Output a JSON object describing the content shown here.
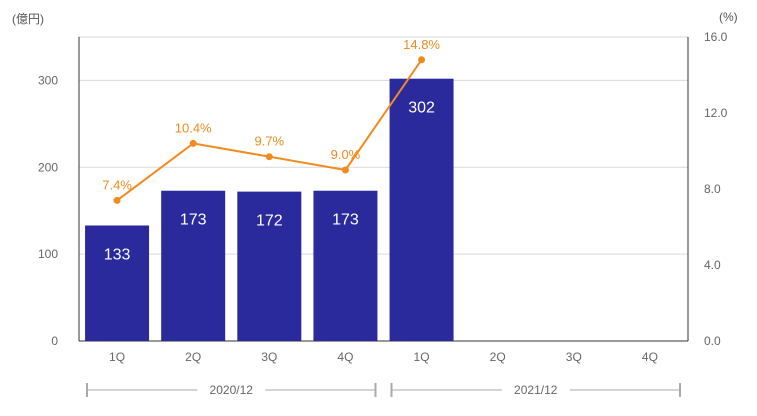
{
  "units": {
    "left": "(億円)",
    "right": "(%)"
  },
  "colors": {
    "bar": "#2b2a9c",
    "line": "#f28a1e",
    "grid": "#d9d9d9",
    "axis": "#333333",
    "bracket": "#aaaaaa"
  },
  "chart_data": {
    "type": "bar",
    "categories": [
      "1Q",
      "2Q",
      "3Q",
      "4Q",
      "1Q",
      "2Q",
      "3Q",
      "4Q"
    ],
    "groups": [
      {
        "label": "2020/12",
        "start": 0,
        "end": 3
      },
      {
        "label": "2021/12",
        "start": 4,
        "end": 7
      }
    ],
    "series": [
      {
        "kind": "bar",
        "axis": "left",
        "values": [
          133,
          173,
          172,
          173,
          302,
          null,
          null,
          null
        ],
        "labels": [
          "133",
          "173",
          "172",
          "173",
          "302",
          "",
          "",
          ""
        ]
      },
      {
        "kind": "line",
        "axis": "right",
        "values": [
          7.4,
          10.4,
          9.7,
          9.0,
          14.8,
          null,
          null,
          null
        ],
        "labels": [
          "7.4%",
          "10.4%",
          "9.7%",
          "9.0%",
          "14.8%",
          "",
          "",
          ""
        ]
      }
    ],
    "y_left": {
      "min": 0,
      "max": 350,
      "ticks": [
        0,
        100,
        200,
        300
      ],
      "tick_labels": [
        "0",
        "100",
        "200",
        "300"
      ]
    },
    "y_right": {
      "min": 0,
      "max": 16,
      "ticks": [
        0,
        4,
        8,
        12,
        16
      ],
      "tick_labels": [
        "0.0",
        "4.0",
        "8.0",
        "12.0",
        "16.0"
      ]
    },
    "grid": true
  }
}
